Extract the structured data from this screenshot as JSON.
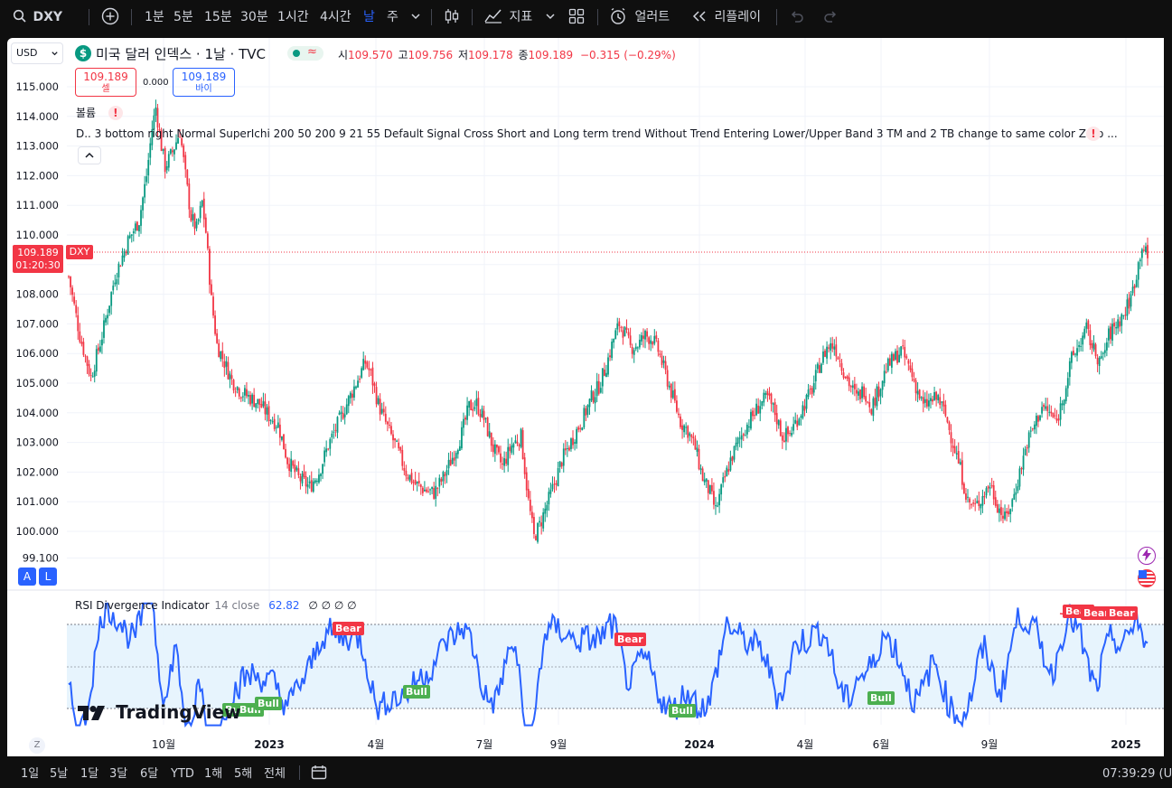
{
  "toolbar": {
    "symbol": "DXY",
    "intervals": [
      "1분",
      "5분",
      "15분",
      "30분",
      "1시간",
      "4시간",
      "날",
      "주"
    ],
    "active_interval": "날",
    "indicators_label": "지표",
    "alert_label": "얼러트",
    "replay_label": "리플레이"
  },
  "legend": {
    "currency": "USD",
    "symbol_name": "미국 달러 인덱스 · 1날 · TVC",
    "open_label": "시",
    "open": "109.570",
    "high_label": "고",
    "high": "109.756",
    "low_label": "저",
    "low": "109.178",
    "close_label": "종",
    "close": "109.189",
    "change": "−0.315 (−0.29%)",
    "sell_price": "109.189",
    "sell_label": "셀",
    "spread": "0.000",
    "buy_price": "109.189",
    "buy_label": "바이",
    "volume_label": "볼륨",
    "indicator_row": "D..  3 bottom right Normal SuperIchi 200 50 200 9 21 55 Default Signal Cross Short and Long term trend Without Trend Entering Lower/Upper Band 3 TM and 2 TB change to same color Zero ..."
  },
  "price_label": {
    "price": "109.189",
    "countdown": "01:20:30",
    "symbol": "DXY"
  },
  "rsi": {
    "title": "RSI Divergence Indicator",
    "params": "14 close",
    "value": "62.82",
    "extras": "∅ ∅ ∅ ∅",
    "bear_label": "Bear",
    "bull_label": "Bull"
  },
  "watermark": "TradingView",
  "bottom": {
    "ranges": [
      "1일",
      "5날",
      "1달",
      "3달",
      "6달",
      "YTD",
      "1해",
      "5해",
      "전체"
    ],
    "time": "07:39:29 (U"
  },
  "chart_data": {
    "type": "candlestick",
    "title": "미국 달러 인덱스 · 1날 · TVC",
    "y_ticks": [
      115,
      114,
      113,
      112,
      111,
      110,
      109,
      108,
      107,
      106,
      105,
      104,
      103,
      102,
      101,
      100,
      99.1
    ],
    "y_tick_labels": [
      "115.000",
      "114.000",
      "113.000",
      "112.000",
      "111.000",
      "110.000",
      "",
      "108.000",
      "107.000",
      "106.000",
      "105.000",
      "104.000",
      "103.000",
      "102.000",
      "101.000",
      "100.000",
      "99.100"
    ],
    "x_labels": [
      "10월",
      "2023",
      "4월",
      "7월",
      "9월",
      "2024",
      "4월",
      "6월",
      "9월",
      "2025"
    ],
    "price_path": [
      [
        0,
        108.6
      ],
      [
        6,
        106.6
      ],
      [
        12,
        105.2
      ],
      [
        18,
        106.6
      ],
      [
        25,
        108.6
      ],
      [
        32,
        109.8
      ],
      [
        38,
        110.5
      ],
      [
        42,
        112.0
      ],
      [
        45,
        113.6
      ],
      [
        47,
        114.3
      ],
      [
        50,
        113.0
      ],
      [
        52,
        112.3
      ],
      [
        56,
        112.8
      ],
      [
        60,
        113.5
      ],
      [
        63,
        112.0
      ],
      [
        66,
        110.6
      ],
      [
        69,
        110.2
      ],
      [
        72,
        111.1
      ],
      [
        74,
        110.1
      ],
      [
        77,
        107.8
      ],
      [
        80,
        106.3
      ],
      [
        84,
        105.7
      ],
      [
        88,
        105.1
      ],
      [
        93,
        104.7
      ],
      [
        98,
        104.5
      ],
      [
        103,
        104.3
      ],
      [
        108,
        103.9
      ],
      [
        113,
        103.6
      ],
      [
        118,
        102.4
      ],
      [
        124,
        101.8
      ],
      [
        130,
        101.5
      ],
      [
        135,
        102.0
      ],
      [
        140,
        102.9
      ],
      [
        145,
        103.6
      ],
      [
        150,
        104.3
      ],
      [
        155,
        105.0
      ],
      [
        160,
        105.7
      ],
      [
        163,
        105.3
      ],
      [
        167,
        104.3
      ],
      [
        172,
        103.5
      ],
      [
        177,
        102.8
      ],
      [
        182,
        102.0
      ],
      [
        187,
        101.6
      ],
      [
        192,
        101.4
      ],
      [
        197,
        101.3
      ],
      [
        202,
        101.8
      ],
      [
        207,
        102.5
      ],
      [
        212,
        103.3
      ],
      [
        216,
        104.2
      ],
      [
        220,
        104.3
      ],
      [
        224,
        103.8
      ],
      [
        229,
        102.8
      ],
      [
        234,
        102.2
      ],
      [
        239,
        102.9
      ],
      [
        244,
        103.2
      ],
      [
        248,
        101.0
      ],
      [
        251,
        99.8
      ],
      [
        254,
        100.2
      ],
      [
        258,
        100.9
      ],
      [
        262,
        101.6
      ],
      [
        266,
        102.4
      ],
      [
        270,
        102.9
      ],
      [
        274,
        103.4
      ],
      [
        278,
        103.9
      ],
      [
        282,
        104.5
      ],
      [
        286,
        104.9
      ],
      [
        290,
        105.6
      ],
      [
        294,
        106.5
      ],
      [
        297,
        107.0
      ],
      [
        300,
        106.7
      ],
      [
        303,
        106.2
      ],
      [
        307,
        106.3
      ],
      [
        311,
        106.6
      ],
      [
        315,
        106.5
      ],
      [
        318,
        106.1
      ],
      [
        322,
        105.3
      ],
      [
        326,
        104.5
      ],
      [
        330,
        103.7
      ],
      [
        334,
        103.4
      ],
      [
        338,
        102.8
      ],
      [
        342,
        101.8
      ],
      [
        346,
        101.3
      ],
      [
        349,
        100.7
      ],
      [
        353,
        101.6
      ],
      [
        357,
        102.4
      ],
      [
        361,
        103.0
      ],
      [
        365,
        103.5
      ],
      [
        369,
        103.9
      ],
      [
        373,
        104.3
      ],
      [
        377,
        104.5
      ],
      [
        381,
        104.0
      ],
      [
        385,
        103.2
      ],
      [
        389,
        103.3
      ],
      [
        393,
        103.8
      ],
      [
        397,
        104.3
      ],
      [
        401,
        104.8
      ],
      [
        405,
        105.6
      ],
      [
        409,
        106.2
      ],
      [
        413,
        106.3
      ],
      [
        417,
        105.6
      ],
      [
        421,
        105.0
      ],
      [
        425,
        104.5
      ],
      [
        429,
        104.8
      ],
      [
        433,
        104.2
      ],
      [
        437,
        104.8
      ],
      [
        441,
        105.5
      ],
      [
        445,
        105.8
      ],
      [
        449,
        106.1
      ],
      [
        453,
        105.6
      ],
      [
        457,
        104.9
      ],
      [
        461,
        104.2
      ],
      [
        465,
        104.4
      ],
      [
        469,
        104.5
      ],
      [
        473,
        103.9
      ],
      [
        477,
        103.0
      ],
      [
        481,
        102.1
      ],
      [
        485,
        101.0
      ],
      [
        489,
        100.8
      ],
      [
        493,
        101.2
      ],
      [
        497,
        101.6
      ],
      [
        501,
        100.9
      ],
      [
        505,
        100.4
      ],
      [
        509,
        101.0
      ],
      [
        513,
        102.0
      ],
      [
        517,
        103.0
      ],
      [
        521,
        103.6
      ],
      [
        525,
        104.2
      ],
      [
        529,
        104.0
      ],
      [
        533,
        103.7
      ],
      [
        537,
        104.7
      ],
      [
        541,
        105.8
      ],
      [
        545,
        106.3
      ],
      [
        549,
        106.8
      ],
      [
        553,
        106.1
      ],
      [
        557,
        105.7
      ],
      [
        561,
        106.6
      ],
      [
        565,
        107.0
      ],
      [
        569,
        107.3
      ],
      [
        573,
        107.9
      ],
      [
        576,
        108.7
      ],
      [
        579,
        109.7
      ],
      [
        582,
        109.2
      ]
    ]
  }
}
